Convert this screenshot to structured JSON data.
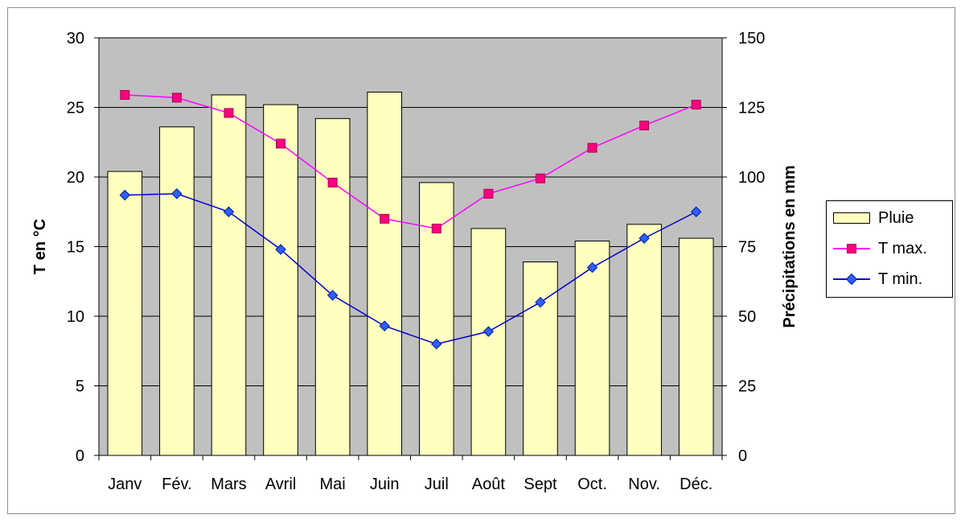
{
  "chart_data": {
    "type": "bar+line",
    "categories": [
      "Janv",
      "Fév.",
      "Mars",
      "Avril",
      "Mai",
      "Juin",
      "Juil",
      "Août",
      "Sept",
      "Oct.",
      "Nov.",
      "Déc."
    ],
    "bar_series": {
      "name": "Pluie",
      "axis": "right",
      "values": [
        102,
        118,
        129.5,
        126,
        121,
        130.5,
        98,
        81.5,
        69.5,
        77,
        83,
        78
      ],
      "color": "#ffffc0"
    },
    "line_series": [
      {
        "name": "T max.",
        "axis": "left",
        "color": "#ff00ff",
        "marker_color": "#ff007f",
        "marker": "square",
        "values": [
          25.9,
          25.7,
          24.6,
          22.4,
          19.6,
          17.0,
          16.3,
          18.8,
          19.9,
          22.1,
          23.7,
          25.2
        ]
      },
      {
        "name": "T min.",
        "axis": "left",
        "color": "#0000cc",
        "marker_color": "#2f5fff",
        "marker": "diamond",
        "values": [
          18.7,
          18.8,
          17.5,
          14.8,
          11.5,
          9.3,
          8.0,
          8.9,
          11.0,
          13.5,
          15.6,
          17.5
        ]
      }
    ],
    "left_axis": {
      "label": "T en °C",
      "min": 0,
      "max": 30,
      "ticks": [
        "0",
        "5",
        "10",
        "15",
        "20",
        "25",
        "30"
      ]
    },
    "right_axis": {
      "label": "Précipitations en mm",
      "min": 0,
      "max": 150,
      "ticks": [
        "0",
        "25",
        "50",
        "75",
        "100",
        "125",
        "150"
      ]
    },
    "plot_background": "#c0c0c0",
    "grid": true,
    "legend_position": "right"
  },
  "legend": {
    "items": [
      "Pluie",
      "T max.",
      "T min."
    ]
  }
}
